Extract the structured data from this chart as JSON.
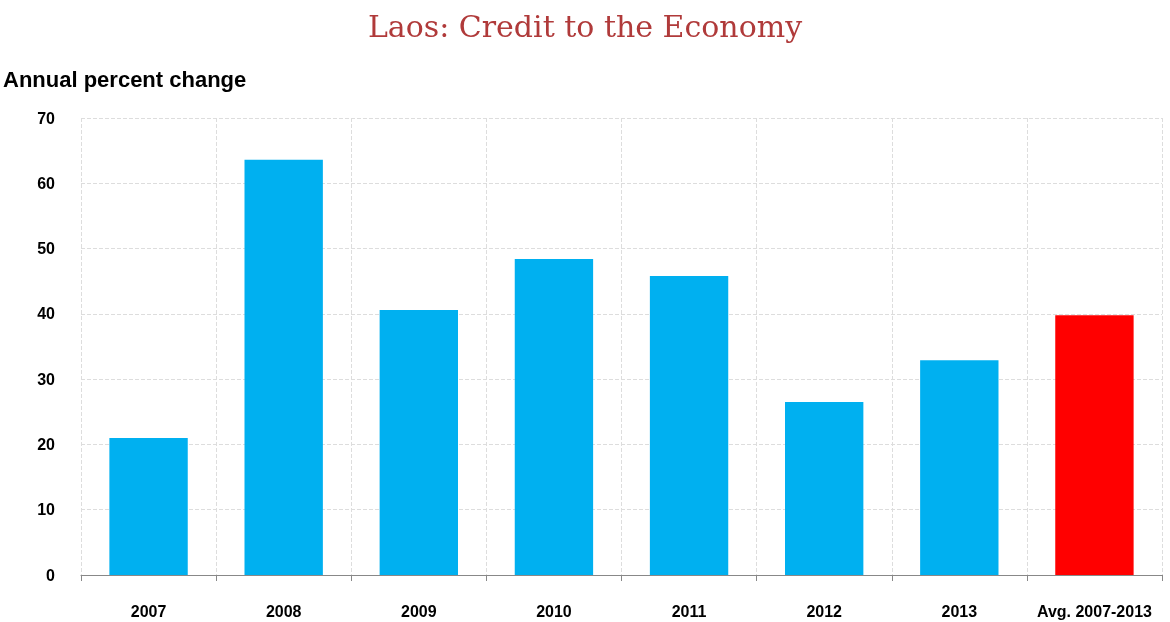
{
  "chart_data": {
    "type": "bar",
    "title": "Laos: Credit to the Economy",
    "ylabel": "Annual percent change",
    "categories": [
      "2007",
      "2008",
      "2009",
      "2010",
      "2011",
      "2012",
      "2013",
      "Avg. 2007-2013"
    ],
    "values": [
      21.0,
      63.6,
      40.6,
      48.4,
      45.8,
      26.5,
      32.9,
      39.8
    ],
    "colors": [
      "#00b0f0",
      "#00b0f0",
      "#00b0f0",
      "#00b0f0",
      "#00b0f0",
      "#00b0f0",
      "#00b0f0",
      "#ff0000"
    ],
    "ylim": [
      0,
      70
    ],
    "yticks": [
      0,
      10,
      20,
      30,
      40,
      50,
      60,
      70
    ],
    "grid": true
  }
}
